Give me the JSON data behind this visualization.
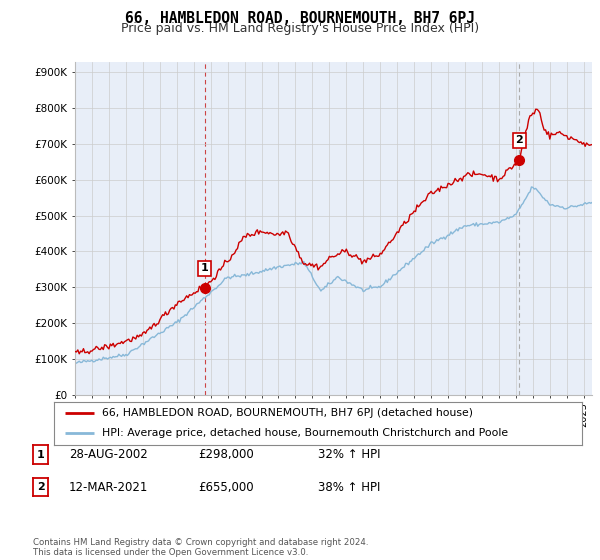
{
  "title": "66, HAMBLEDON ROAD, BOURNEMOUTH, BH7 6PJ",
  "subtitle": "Price paid vs. HM Land Registry's House Price Index (HPI)",
  "ylabel_ticks": [
    "£0",
    "£100K",
    "£200K",
    "£300K",
    "£400K",
    "£500K",
    "£600K",
    "£700K",
    "£800K",
    "£900K"
  ],
  "ytick_values": [
    0,
    100000,
    200000,
    300000,
    400000,
    500000,
    600000,
    700000,
    800000,
    900000
  ],
  "ylim": [
    0,
    930000
  ],
  "xlim_start": 1995.0,
  "xlim_end": 2025.5,
  "red_color": "#cc0000",
  "blue_color": "#88b8d8",
  "chart_bg": "#e8eef8",
  "marker1_x": 2002.65,
  "marker1_y": 298000,
  "marker2_x": 2021.2,
  "marker2_y": 655000,
  "marker1_label": "1",
  "marker2_label": "2",
  "vline1_color": "#cc4444",
  "vline2_color": "#aaaaaa",
  "legend_line1": "66, HAMBLEDON ROAD, BOURNEMOUTH, BH7 6PJ (detached house)",
  "legend_line2": "HPI: Average price, detached house, Bournemouth Christchurch and Poole",
  "table_row1": [
    "1",
    "28-AUG-2002",
    "£298,000",
    "32% ↑ HPI"
  ],
  "table_row2": [
    "2",
    "12-MAR-2021",
    "£655,000",
    "38% ↑ HPI"
  ],
  "footer": "Contains HM Land Registry data © Crown copyright and database right 2024.\nThis data is licensed under the Open Government Licence v3.0.",
  "bg_color": "#ffffff",
  "grid_color": "#cccccc",
  "title_fontsize": 10.5,
  "subtitle_fontsize": 9
}
